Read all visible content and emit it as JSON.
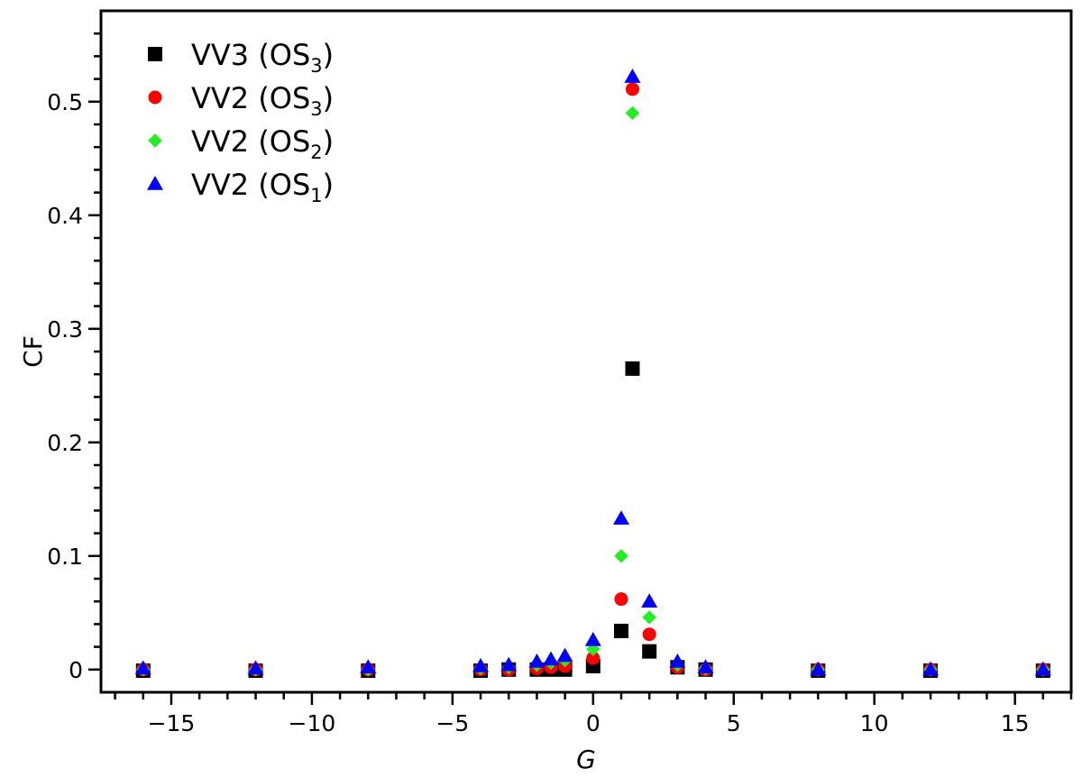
{
  "chart_data": {
    "type": "scatter",
    "xlabel": "G",
    "ylabel": "CF",
    "xlim": [
      -17.5,
      17
    ],
    "ylim": [
      -0.02,
      0.58
    ],
    "x_ticks": [
      -15,
      -10,
      -5,
      0,
      5,
      10,
      15
    ],
    "x_tick_labels": [
      "−15",
      "−10",
      "−5",
      "0",
      "5",
      "10",
      "15"
    ],
    "y_ticks": [
      0,
      0.1,
      0.2,
      0.3,
      0.4,
      0.5
    ],
    "y_tick_labels": [
      "0",
      "0.1",
      "0.2",
      "0.3",
      "0.4",
      "0.5"
    ],
    "grid": false,
    "legend_position": "top-left",
    "series": [
      {
        "name": "VV3 (OS3)",
        "label_main": "VV3 (OS",
        "label_sub": "3",
        "label_end": ")",
        "marker": "square",
        "color": "#000000",
        "x": [
          -16,
          -12,
          -8,
          -4,
          -3,
          -2,
          -1.5,
          -1,
          0,
          1,
          1.4,
          2,
          3,
          4,
          8,
          12,
          16
        ],
        "y": [
          -0.001,
          -0.001,
          -0.001,
          -0.001,
          0,
          0,
          0,
          0,
          0.003,
          0.034,
          0.265,
          0.016,
          0.002,
          0,
          -0.001,
          -0.001,
          -0.001
        ]
      },
      {
        "name": "VV2 (OS3)",
        "label_main": "VV2 (OS",
        "label_sub": "3",
        "label_end": ")",
        "marker": "circle",
        "color": "#ff0000",
        "x": [
          -16,
          -12,
          -8,
          -4,
          -3,
          -2,
          -1.5,
          -1,
          0,
          1,
          1.4,
          2,
          3,
          4,
          8,
          12,
          16
        ],
        "y": [
          0,
          0,
          0,
          0,
          0,
          0.001,
          0.002,
          0.003,
          0.01,
          0.062,
          0.511,
          0.031,
          0.002,
          0,
          0,
          0,
          0
        ]
      },
      {
        "name": "VV2 (OS2)",
        "label_main": "VV2 (OS",
        "label_sub": "2",
        "label_end": ")",
        "marker": "diamond",
        "color": "#22ee22",
        "x": [
          -16,
          -12,
          -8,
          -4,
          -3,
          -2,
          -1.5,
          -1,
          0,
          1,
          1.4,
          2,
          3,
          4,
          8,
          12,
          16
        ],
        "y": [
          0,
          0,
          0,
          0.001,
          0.002,
          0.004,
          0.006,
          0.008,
          0.018,
          0.1,
          0.49,
          0.046,
          0.004,
          0.001,
          0,
          0,
          0
        ]
      },
      {
        "name": "VV2 (OS1)",
        "label_main": "VV2 (OS",
        "label_sub": "1",
        "label_end": ")",
        "marker": "triangle",
        "color": "#0000ff",
        "x": [
          -16,
          -12,
          -8,
          -4,
          -3,
          -2,
          -1.5,
          -1,
          0,
          1,
          1.4,
          2,
          3,
          4,
          8,
          12,
          16
        ],
        "y": [
          0.001,
          0.001,
          0.002,
          0.003,
          0.004,
          0.007,
          0.009,
          0.012,
          0.026,
          0.133,
          0.522,
          0.06,
          0.007,
          0.002,
          0,
          0,
          0
        ]
      }
    ]
  }
}
